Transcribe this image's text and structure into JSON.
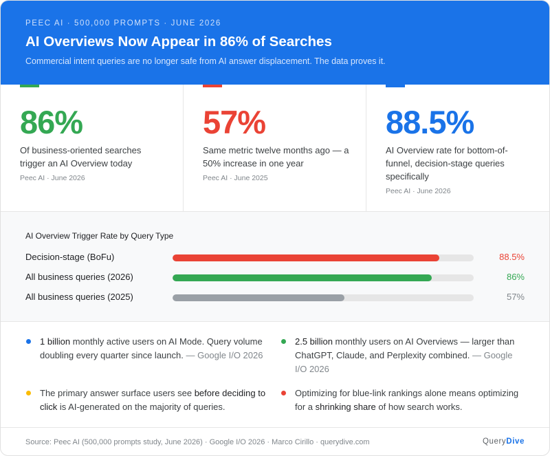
{
  "header": {
    "eyebrow": "PEEC AI · 500,000 PROMPTS · JUNE 2026",
    "title": "AI Overviews Now Appear in 86% of Searches",
    "subtitle": "Commercial intent queries are no longer safe from AI answer displacement. The data proves it."
  },
  "stats": [
    {
      "value": "86%",
      "color": "#34a853",
      "description": "Of business-oriented searches trigger an AI Overview today",
      "source": "Peec AI · June 2026"
    },
    {
      "value": "57%",
      "color": "#ea4335",
      "description": "Same metric twelve months ago — a 50% increase in one year",
      "source": "Peec AI · June 2025"
    },
    {
      "value": "88.5%",
      "color": "#1a73e8",
      "description": "AI Overview rate for bottom-of-funnel, decision-stage queries specifically",
      "source": "Peec AI · June 2026"
    }
  ],
  "chart_data": {
    "type": "bar",
    "title": "AI Overview Trigger Rate by Query Type",
    "categories": [
      "Decision-stage (BoFu)",
      "All business queries (2026)",
      "All business queries (2025)"
    ],
    "values": [
      88.5,
      86,
      57
    ],
    "value_labels": [
      "88.5%",
      "86%",
      "57%"
    ],
    "colors": [
      "#ea4335",
      "#34a853",
      "#9aa0a6"
    ],
    "label_colors": [
      "#ea4335",
      "#34a853",
      "#80868b"
    ],
    "ylim": [
      0,
      100
    ],
    "orientation": "horizontal"
  },
  "facts": [
    {
      "color": "#1a73e8",
      "strong": "1 billion",
      "text": " monthly active users on AI Mode. Query volume doubling every quarter since launch.",
      "cite": " — Google I/O 2026"
    },
    {
      "color": "#34a853",
      "strong": "2.5 billion",
      "text": " monthly users on AI Overviews — larger than ChatGPT, Claude, and Perplexity combined.",
      "cite": " — Google I/O 2026"
    },
    {
      "color": "#fbbc04",
      "pre": "The primary answer surface users see ",
      "strong": "before deciding to click",
      "text": " is AI-generated on the majority of queries."
    },
    {
      "color": "#ea4335",
      "pre": "Optimizing for blue-link rankings alone means optimizing for a ",
      "strong": "shrinking share",
      "text": " of how search works."
    }
  ],
  "footer": {
    "source": "Source: Peec AI (500,000 prompts study, June 2026) · Google I/O 2026 · Marco Cirillo · querydive.com",
    "brand_part1": "Query",
    "brand_part2": "Dive"
  }
}
